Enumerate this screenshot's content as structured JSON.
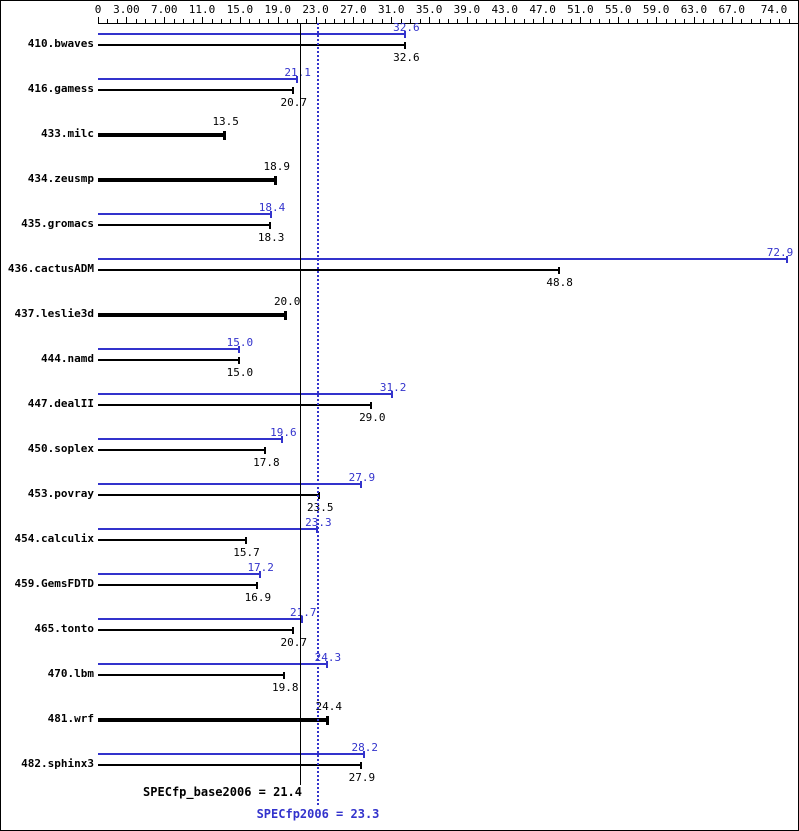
{
  "colors": {
    "peak": "#3333cc",
    "base": "#000000",
    "background": "#ffffff",
    "border": "#000000"
  },
  "chart_data": {
    "type": "bar",
    "orientation": "horizontal",
    "title": "",
    "legend": "none",
    "axis": {
      "min": 0,
      "max": 74,
      "position": "top",
      "minor_tick_step": 1,
      "ticks": [
        0,
        3,
        7,
        11,
        15,
        19,
        23,
        27,
        31,
        35,
        39,
        43,
        47,
        51,
        55,
        59,
        63,
        67,
        74
      ],
      "tick_labels": [
        "0",
        "3.00",
        "7.00",
        "11.0",
        "15.0",
        "19.0",
        "23.0",
        "27.0",
        "31.0",
        "35.0",
        "39.0",
        "43.0",
        "47.0",
        "51.0",
        "55.0",
        "59.0",
        "63.0",
        "67.0",
        "74.0"
      ]
    },
    "series_meaning": {
      "peak": "thin blue bar with blue value label above",
      "base": "black bar with black value label below; bold single bar when only base was run"
    },
    "benchmarks": [
      {
        "name": "410.bwaves",
        "peak": 32.6,
        "base": 32.6
      },
      {
        "name": "416.gamess",
        "peak": 21.1,
        "base": 20.7
      },
      {
        "name": "433.milc",
        "peak": null,
        "base": 13.5
      },
      {
        "name": "434.zeusmp",
        "peak": null,
        "base": 18.9
      },
      {
        "name": "435.gromacs",
        "peak": 18.4,
        "base": 18.3
      },
      {
        "name": "436.cactusADM",
        "peak": 72.9,
        "base": 48.8
      },
      {
        "name": "437.leslie3d",
        "peak": null,
        "base": 20.0
      },
      {
        "name": "444.namd",
        "peak": 15.0,
        "base": 15.0
      },
      {
        "name": "447.dealII",
        "peak": 31.2,
        "base": 29.0
      },
      {
        "name": "450.soplex",
        "peak": 19.6,
        "base": 17.8
      },
      {
        "name": "453.povray",
        "peak": 27.9,
        "base": 23.5
      },
      {
        "name": "454.calculix",
        "peak": 23.3,
        "base": 15.7
      },
      {
        "name": "459.GemsFDTD",
        "peak": 17.2,
        "base": 16.9
      },
      {
        "name": "465.tonto",
        "peak": 21.7,
        "base": 20.7
      },
      {
        "name": "470.lbm",
        "peak": 24.3,
        "base": 19.8
      },
      {
        "name": "481.wrf",
        "peak": null,
        "base": 24.4
      },
      {
        "name": "482.sphinx3",
        "peak": 28.2,
        "base": 27.9
      }
    ],
    "reference_lines": [
      {
        "kind": "base",
        "label": "SPECfp_base2006 = 21.4",
        "value": 21.4,
        "style": "solid",
        "color": "#000000"
      },
      {
        "kind": "peak",
        "label": "SPECfp2006 = 23.3",
        "value": 23.3,
        "style": "dotted",
        "color": "#3333cc"
      }
    ]
  }
}
